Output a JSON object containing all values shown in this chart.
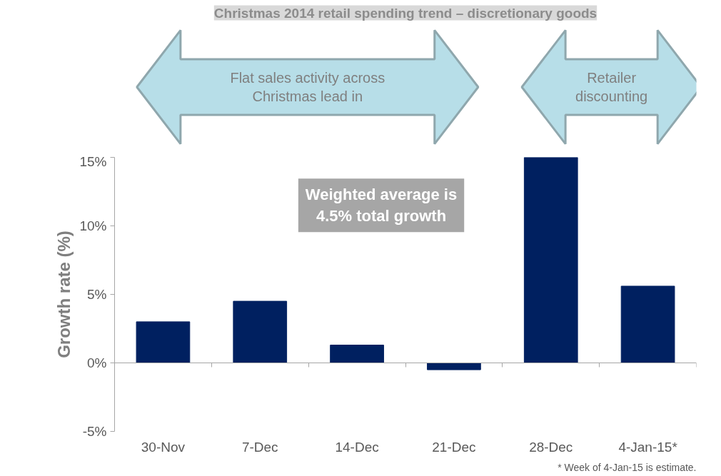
{
  "chart_data": {
    "type": "bar",
    "title": "Christmas 2014 retail spending trend – discretionary goods",
    "categories": [
      "30-Nov",
      "7-Dec",
      "14-Dec",
      "21-Dec",
      "28-Dec",
      "4-Jan-15*"
    ],
    "values": [
      3.0,
      4.5,
      1.3,
      -0.5,
      15.0,
      5.6
    ],
    "color": "#002060",
    "ylabel": "Growth rate (%)",
    "ylim": [
      -5,
      15
    ],
    "yticks": [
      {
        "value": -5,
        "label": "-5%"
      },
      {
        "value": 0,
        "label": "0%"
      },
      {
        "value": 5,
        "label": "5%"
      },
      {
        "value": 10,
        "label": "10%"
      },
      {
        "value": 15,
        "label": "15%"
      }
    ],
    "annotations": [
      "Flat sales activity across\nChristmas lead in",
      "Retailer\ndiscounting",
      "Weighted average is\n4.5% total growth",
      "* Week of 4-Jan-15 is estimate."
    ]
  }
}
